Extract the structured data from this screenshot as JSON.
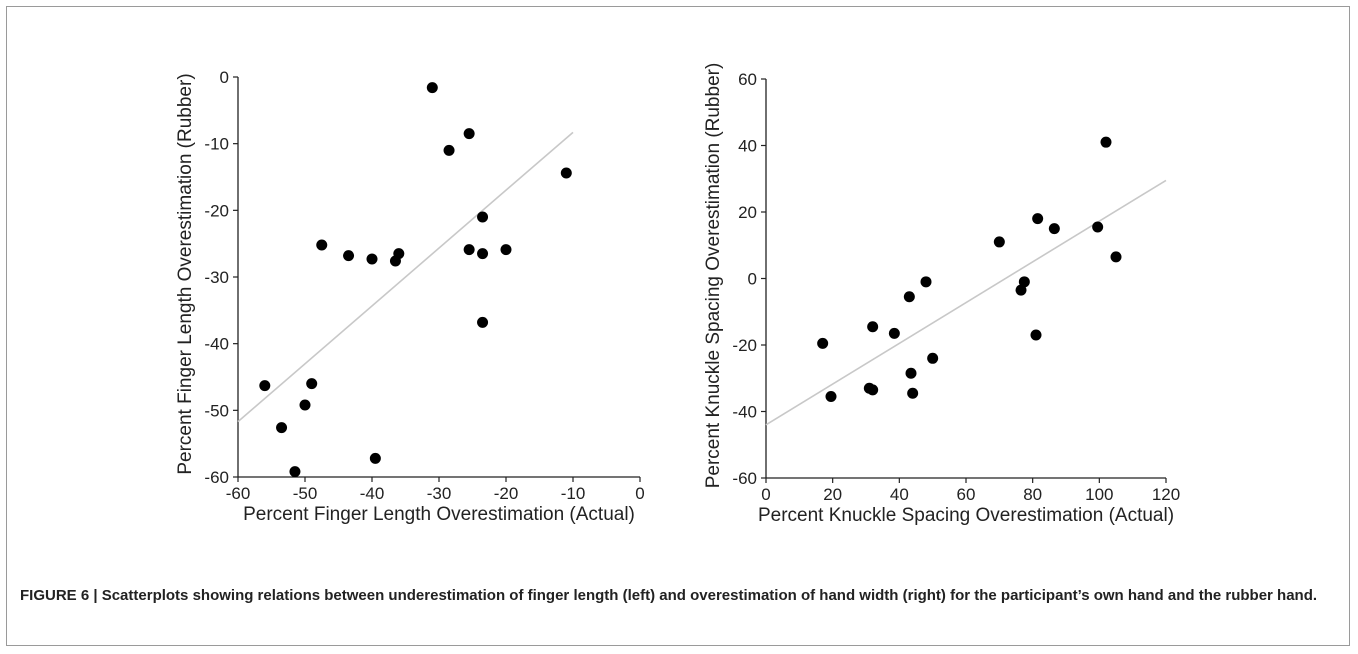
{
  "caption": "FIGURE 6 | Scatterplots showing relations between underestimation of finger length (left) and overestimation of hand width (right) for the participant’s own hand and the rubber hand.",
  "chart_data": [
    {
      "type": "scatter",
      "xlabel": "Percent Finger Length Overestimation (Actual)",
      "ylabel": "Percent Finger Length Overestimation (Rubber)",
      "xlim": [
        -60,
        0
      ],
      "ylim": [
        -60,
        0
      ],
      "xticks": [
        -60,
        -50,
        -40,
        -30,
        -20,
        -10,
        0
      ],
      "yticks": [
        -60,
        -50,
        -40,
        -30,
        -20,
        -10,
        0
      ],
      "grid": false,
      "point_color": "#000000",
      "fit_color": "#c8c8c8",
      "points": [
        {
          "x": -31,
          "y": -1.6
        },
        {
          "x": -25.5,
          "y": -8.5
        },
        {
          "x": -28.5,
          "y": -11
        },
        {
          "x": -11,
          "y": -14.4
        },
        {
          "x": -23.5,
          "y": -21
        },
        {
          "x": -47.5,
          "y": -25.2
        },
        {
          "x": -25.5,
          "y": -25.9
        },
        {
          "x": -20,
          "y": -25.9
        },
        {
          "x": -36,
          "y": -26.5
        },
        {
          "x": -23.5,
          "y": -26.5
        },
        {
          "x": -43.5,
          "y": -26.8
        },
        {
          "x": -40,
          "y": -27.3
        },
        {
          "x": -36.5,
          "y": -27.6
        },
        {
          "x": -23.5,
          "y": -36.8
        },
        {
          "x": -49,
          "y": -46
        },
        {
          "x": -56,
          "y": -46.3
        },
        {
          "x": -50,
          "y": -49.2
        },
        {
          "x": -53.5,
          "y": -52.6
        },
        {
          "x": -39.5,
          "y": -57.2
        },
        {
          "x": -51.5,
          "y": -59.2
        }
      ],
      "fit_line": [
        {
          "x": -60,
          "y": -51.7
        },
        {
          "x": -10,
          "y": -8.3
        }
      ]
    },
    {
      "type": "scatter",
      "xlabel": "Percent Knuckle Spacing Overestimation (Actual)",
      "ylabel": "Percent Knuckle Spacing Overestimation (Rubber)",
      "xlim": [
        0,
        120
      ],
      "ylim": [
        -60,
        60
      ],
      "xticks": [
        0,
        20,
        40,
        60,
        80,
        100,
        120
      ],
      "yticks": [
        -60,
        -40,
        -20,
        0,
        20,
        40,
        60
      ],
      "grid": false,
      "point_color": "#000000",
      "fit_color": "#c8c8c8",
      "points": [
        {
          "x": 102,
          "y": 41
        },
        {
          "x": 81.5,
          "y": 18
        },
        {
          "x": 86.5,
          "y": 15
        },
        {
          "x": 99.5,
          "y": 15.5
        },
        {
          "x": 70,
          "y": 11
        },
        {
          "x": 105,
          "y": 6.5
        },
        {
          "x": 48,
          "y": -1
        },
        {
          "x": 77.5,
          "y": -1
        },
        {
          "x": 76.5,
          "y": -3.5
        },
        {
          "x": 43,
          "y": -5.5
        },
        {
          "x": 32,
          "y": -14.5
        },
        {
          "x": 38.5,
          "y": -16.5
        },
        {
          "x": 81,
          "y": -17
        },
        {
          "x": 17,
          "y": -19.5
        },
        {
          "x": 50,
          "y": -24
        },
        {
          "x": 43.5,
          "y": -28.5
        },
        {
          "x": 31,
          "y": -33
        },
        {
          "x": 32,
          "y": -33.5
        },
        {
          "x": 44,
          "y": -34.5
        },
        {
          "x": 19.5,
          "y": -35.5
        }
      ],
      "fit_line": [
        {
          "x": 0,
          "y": -44
        },
        {
          "x": 120,
          "y": 29.5
        }
      ]
    }
  ]
}
